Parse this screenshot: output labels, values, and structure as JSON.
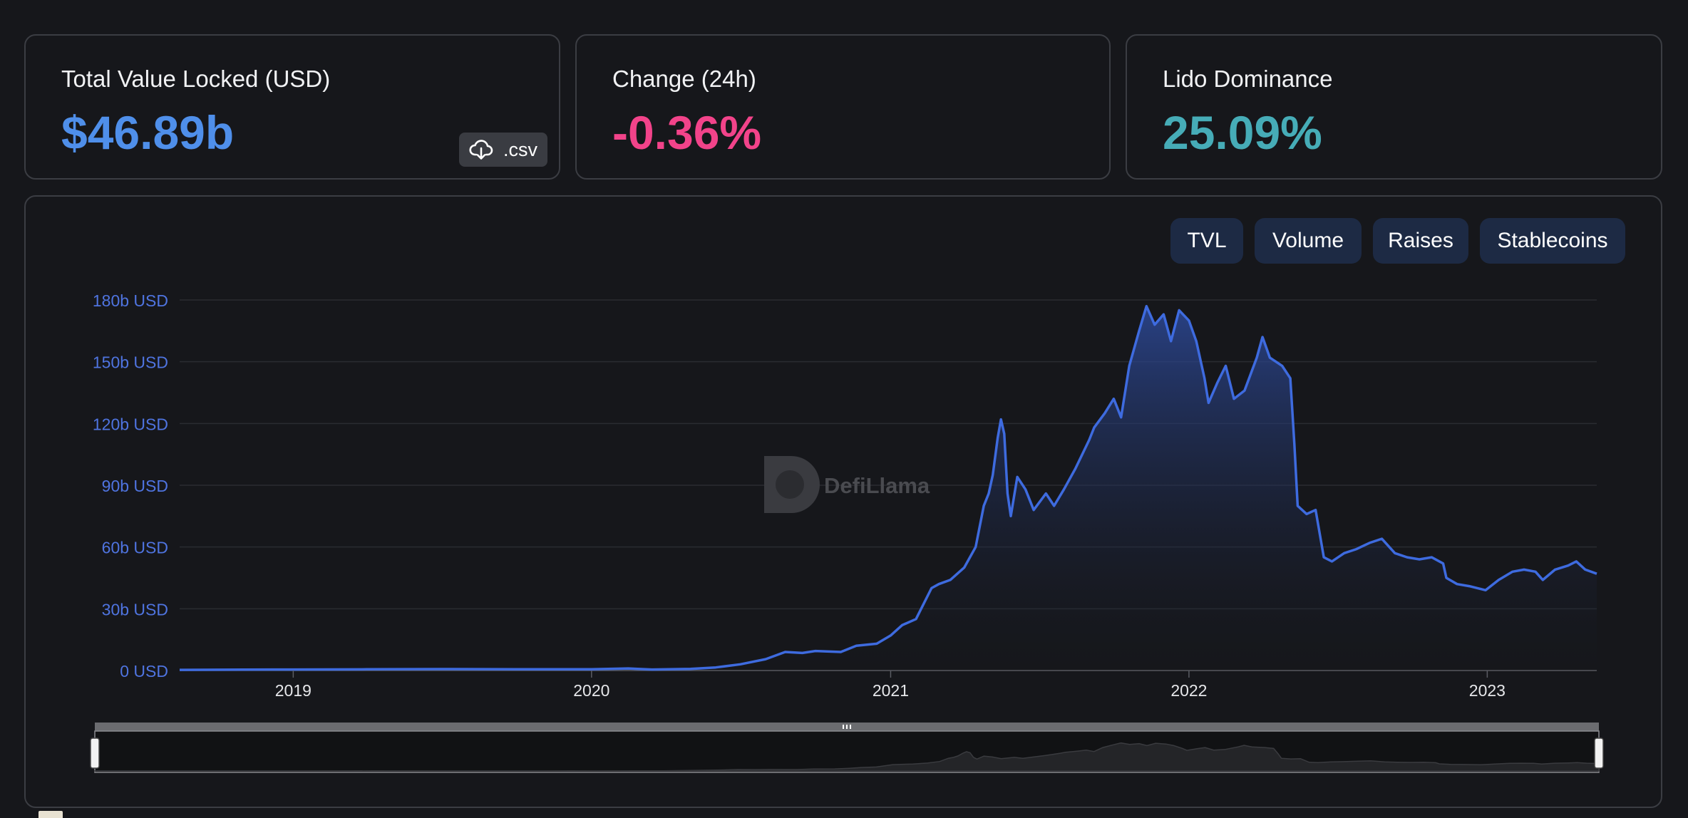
{
  "stats": {
    "tvl": {
      "label": "Total Value Locked (USD)",
      "value": "$46.89b",
      "color": "#4f8fea"
    },
    "change": {
      "label": "Change (24h)",
      "value": "-0.36%",
      "color": "#f2438a"
    },
    "dominance": {
      "label": "Lido Dominance",
      "value": "25.09%",
      "color": "#46acb7"
    },
    "csv_label": ".csv",
    "csv_icon": "cloud-download-icon"
  },
  "tabs": [
    {
      "label": "TVL"
    },
    {
      "label": "Volume"
    },
    {
      "label": "Raises"
    },
    {
      "label": "Stablecoins"
    }
  ],
  "watermark": "DefiLlama",
  "colors": {
    "line": "#3e6bdf",
    "axis_label": "#4f74e0",
    "background": "#16171b",
    "tab_background": "#1d2a44"
  },
  "chart_data": {
    "type": "area",
    "x_axis_type": "time",
    "y_unit": "USD",
    "ylim": [
      0,
      180
    ],
    "y_ticks": [
      "0 USD",
      "30b USD",
      "60b USD",
      "90b USD",
      "120b USD",
      "150b USD",
      "180b USD"
    ],
    "y_tick_values": [
      0,
      30,
      60,
      90,
      120,
      150,
      180
    ],
    "x_ticks": [
      "2019",
      "2020",
      "2021",
      "2022",
      "2023"
    ],
    "x_range": [
      "2018-08-15",
      "2023-05-15"
    ],
    "grid": true,
    "series": [
      {
        "values": [
          [
            "2018-08-15",
            0.3
          ],
          [
            "2018-11-01",
            0.4
          ],
          [
            "2019-01-01",
            0.5
          ],
          [
            "2019-04-01",
            0.6
          ],
          [
            "2019-07-01",
            0.7
          ],
          [
            "2019-10-01",
            0.6
          ],
          [
            "2020-01-01",
            0.6
          ],
          [
            "2020-02-15",
            1.0
          ],
          [
            "2020-03-15",
            0.5
          ],
          [
            "2020-05-01",
            0.8
          ],
          [
            "2020-06-01",
            1.5
          ],
          [
            "2020-07-01",
            3.0
          ],
          [
            "2020-08-01",
            5.5
          ],
          [
            "2020-08-25",
            9.0
          ],
          [
            "2020-09-15",
            8.5
          ],
          [
            "2020-10-01",
            9.5
          ],
          [
            "2020-11-01",
            9.0
          ],
          [
            "2020-11-20",
            12.0
          ],
          [
            "2020-12-15",
            13.0
          ],
          [
            "2021-01-01",
            17.0
          ],
          [
            "2021-01-15",
            22.0
          ],
          [
            "2021-02-01",
            25.0
          ],
          [
            "2021-02-20",
            40.0
          ],
          [
            "2021-03-01",
            42.0
          ],
          [
            "2021-03-15",
            44.0
          ],
          [
            "2021-04-01",
            50.0
          ],
          [
            "2021-04-15",
            60.0
          ],
          [
            "2021-04-25",
            80.0
          ],
          [
            "2021-05-01",
            86.0
          ],
          [
            "2021-05-06",
            95.0
          ],
          [
            "2021-05-12",
            113.0
          ],
          [
            "2021-05-16",
            122.0
          ],
          [
            "2021-05-20",
            115.0
          ],
          [
            "2021-05-24",
            86.0
          ],
          [
            "2021-05-28",
            75.0
          ],
          [
            "2021-06-05",
            94.0
          ],
          [
            "2021-06-15",
            88.0
          ],
          [
            "2021-06-25",
            78.0
          ],
          [
            "2021-07-10",
            86.0
          ],
          [
            "2021-07-20",
            80.0
          ],
          [
            "2021-08-01",
            88.0
          ],
          [
            "2021-08-15",
            98.0
          ],
          [
            "2021-09-01",
            112.0
          ],
          [
            "2021-09-07",
            118.0
          ],
          [
            "2021-09-20",
            125.0
          ],
          [
            "2021-10-01",
            132.0
          ],
          [
            "2021-10-10",
            123.0
          ],
          [
            "2021-10-20",
            148.0
          ],
          [
            "2021-11-01",
            165.0
          ],
          [
            "2021-11-10",
            177.0
          ],
          [
            "2021-11-20",
            168.0
          ],
          [
            "2021-12-01",
            173.0
          ],
          [
            "2021-12-10",
            160.0
          ],
          [
            "2021-12-20",
            175.0
          ],
          [
            "2022-01-01",
            170.0
          ],
          [
            "2022-01-10",
            160.0
          ],
          [
            "2022-01-20",
            142.0
          ],
          [
            "2022-01-25",
            130.0
          ],
          [
            "2022-02-05",
            140.0
          ],
          [
            "2022-02-15",
            148.0
          ],
          [
            "2022-02-25",
            132.0
          ],
          [
            "2022-03-10",
            136.0
          ],
          [
            "2022-03-25",
            152.0
          ],
          [
            "2022-04-01",
            162.0
          ],
          [
            "2022-04-10",
            152.0
          ],
          [
            "2022-04-25",
            148.0
          ],
          [
            "2022-05-05",
            142.0
          ],
          [
            "2022-05-10",
            110.0
          ],
          [
            "2022-05-14",
            80.0
          ],
          [
            "2022-05-25",
            76.0
          ],
          [
            "2022-06-05",
            78.0
          ],
          [
            "2022-06-15",
            55.0
          ],
          [
            "2022-06-25",
            53.0
          ],
          [
            "2022-07-10",
            57.0
          ],
          [
            "2022-07-25",
            59.0
          ],
          [
            "2022-08-10",
            62.0
          ],
          [
            "2022-08-25",
            64.0
          ],
          [
            "2022-09-10",
            57.0
          ],
          [
            "2022-09-25",
            55.0
          ],
          [
            "2022-10-10",
            54.0
          ],
          [
            "2022-10-25",
            55.0
          ],
          [
            "2022-11-08",
            52.0
          ],
          [
            "2022-11-12",
            45.0
          ],
          [
            "2022-11-25",
            42.0
          ],
          [
            "2022-12-10",
            41.0
          ],
          [
            "2022-12-30",
            39.0
          ],
          [
            "2023-01-15",
            44.0
          ],
          [
            "2023-02-01",
            48.0
          ],
          [
            "2023-02-15",
            49.0
          ],
          [
            "2023-03-01",
            48.0
          ],
          [
            "2023-03-10",
            44.0
          ],
          [
            "2023-03-25",
            49.0
          ],
          [
            "2023-04-10",
            51.0
          ],
          [
            "2023-04-20",
            53.0
          ],
          [
            "2023-05-01",
            49.0
          ],
          [
            "2023-05-15",
            47.0
          ]
        ]
      }
    ]
  }
}
